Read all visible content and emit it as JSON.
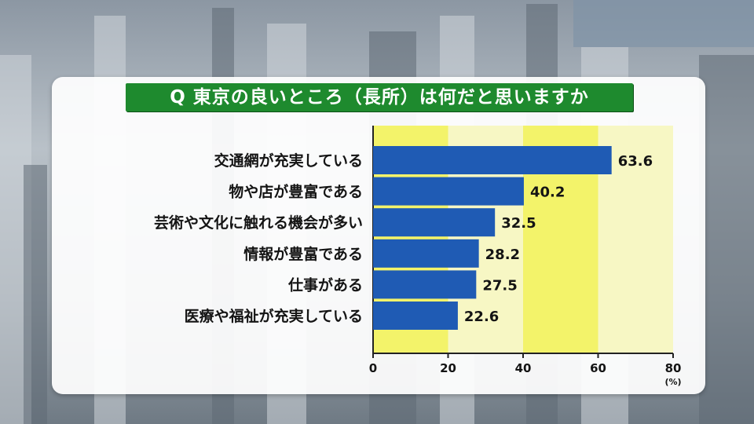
{
  "chart_data": {
    "type": "bar",
    "orientation": "horizontal",
    "title": "Q 東京の良いところ（長所）は何だと思いますか",
    "categories": [
      "交通網が充実している",
      "物や店が豊富である",
      "芸術や文化に触れる機会が多い",
      "情報が豊富である",
      "仕事がある",
      "医療や福祉が充実している"
    ],
    "values": [
      63.6,
      40.2,
      32.5,
      28.2,
      27.5,
      22.6
    ],
    "value_labels": [
      "63.6",
      "40.2",
      "32.5",
      "28.2",
      "27.5",
      "22.6"
    ],
    "xlim": [
      0,
      80
    ],
    "xticks": [
      "0",
      "20",
      "40",
      "60",
      "80"
    ],
    "unit": "(%)",
    "bar_color": "#1f5bb4",
    "band_colors": [
      "#f3f36a",
      "#f7f7c4"
    ],
    "grid": true
  }
}
